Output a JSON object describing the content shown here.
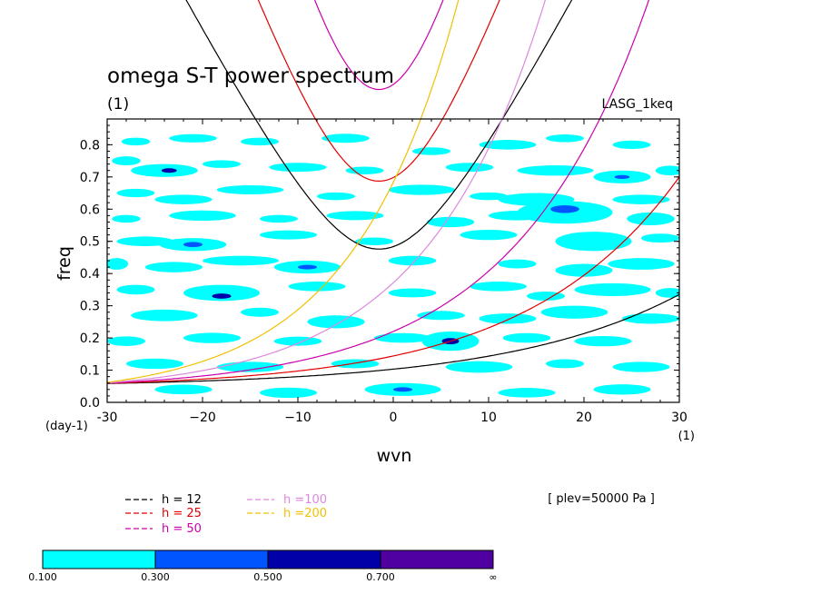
{
  "chart_data": {
    "type": "contour",
    "title": "omega S-T power spectrum",
    "subtitle": "(1)",
    "right_label": "LASG_1keq",
    "xlabel": "wvn",
    "ylabel": "freq",
    "x_unit": "(1)",
    "y_unit": "(day-1)",
    "xlim": [
      -30,
      30
    ],
    "ylim": [
      0,
      0.88
    ],
    "x_ticks": [
      -30,
      -20,
      -10,
      0,
      10,
      20,
      30
    ],
    "x_tick_labels": [
      "-30",
      "−20",
      "−10",
      "0",
      "10",
      "20",
      "30"
    ],
    "y_ticks": [
      0.0,
      0.1,
      0.2,
      0.3,
      0.4,
      0.5,
      0.6,
      0.7,
      0.8
    ],
    "y_tick_labels": [
      "0.0",
      "0.1",
      "0.2",
      "0.3",
      "0.4",
      "0.5",
      "0.6",
      "0.7",
      "0.8"
    ],
    "annotation": "[ plev=50000 Pa ]",
    "dispersion_curves": [
      {
        "name": "h = 12",
        "h": 12,
        "color": "#000000"
      },
      {
        "name": "h = 25",
        "h": 25,
        "color": "#e00000"
      },
      {
        "name": "h = 50",
        "h": 50,
        "color": "#cc00aa"
      },
      {
        "name": "h =100",
        "h": 100,
        "color": "#dd88dd"
      },
      {
        "name": "h =200",
        "h": 200,
        "color": "#f0c000"
      }
    ],
    "colorbar": {
      "colors": [
        "#00ffff",
        "#0055ff",
        "#0000a8",
        "#5000a0"
      ],
      "labels": [
        "0.100",
        "0.300",
        "0.500",
        "0.700",
        "∞"
      ]
    },
    "regions": [
      {
        "l": 1,
        "x": -27,
        "y": 0.81,
        "rx": 1.5,
        "ry": 0.012
      },
      {
        "l": 1,
        "x": -21,
        "y": 0.82,
        "rx": 2.5,
        "ry": 0.013
      },
      {
        "l": 1,
        "x": -14,
        "y": 0.81,
        "rx": 2,
        "ry": 0.012
      },
      {
        "l": 1,
        "x": -5,
        "y": 0.82,
        "rx": 2.5,
        "ry": 0.014
      },
      {
        "l": 1,
        "x": 4,
        "y": 0.78,
        "rx": 2,
        "ry": 0.012
      },
      {
        "l": 1,
        "x": 12,
        "y": 0.8,
        "rx": 3,
        "ry": 0.015
      },
      {
        "l": 1,
        "x": 18,
        "y": 0.82,
        "rx": 2,
        "ry": 0.012
      },
      {
        "l": 1,
        "x": 25,
        "y": 0.8,
        "rx": 2,
        "ry": 0.013
      },
      {
        "l": 1,
        "x": -28,
        "y": 0.75,
        "rx": 1.5,
        "ry": 0.014
      },
      {
        "l": 1,
        "x": -24,
        "y": 0.72,
        "rx": 3.5,
        "ry": 0.02
      },
      {
        "l": 3,
        "x": -23.5,
        "y": 0.72,
        "rx": 0.8,
        "ry": 0.007
      },
      {
        "l": 1,
        "x": -18,
        "y": 0.74,
        "rx": 2,
        "ry": 0.012
      },
      {
        "l": 1,
        "x": -10,
        "y": 0.73,
        "rx": 3,
        "ry": 0.014
      },
      {
        "l": 1,
        "x": -3,
        "y": 0.72,
        "rx": 2,
        "ry": 0.012
      },
      {
        "l": 1,
        "x": 8,
        "y": 0.73,
        "rx": 2.5,
        "ry": 0.014
      },
      {
        "l": 1,
        "x": 17,
        "y": 0.72,
        "rx": 4,
        "ry": 0.016
      },
      {
        "l": 1,
        "x": 24,
        "y": 0.7,
        "rx": 3,
        "ry": 0.02
      },
      {
        "l": 2,
        "x": 24,
        "y": 0.7,
        "rx": 0.8,
        "ry": 0.006
      },
      {
        "l": 1,
        "x": 29,
        "y": 0.72,
        "rx": 1.5,
        "ry": 0.015
      },
      {
        "l": 1,
        "x": -27,
        "y": 0.65,
        "rx": 2,
        "ry": 0.013
      },
      {
        "l": 1,
        "x": -22,
        "y": 0.63,
        "rx": 3,
        "ry": 0.015
      },
      {
        "l": 1,
        "x": -15,
        "y": 0.66,
        "rx": 3.5,
        "ry": 0.014
      },
      {
        "l": 1,
        "x": -6,
        "y": 0.64,
        "rx": 2,
        "ry": 0.012
      },
      {
        "l": 1,
        "x": 3,
        "y": 0.66,
        "rx": 3.5,
        "ry": 0.016
      },
      {
        "l": 1,
        "x": 10,
        "y": 0.64,
        "rx": 2,
        "ry": 0.012
      },
      {
        "l": 1,
        "x": 15,
        "y": 0.63,
        "rx": 4,
        "ry": 0.02
      },
      {
        "l": 1,
        "x": 26,
        "y": 0.63,
        "rx": 3,
        "ry": 0.015
      },
      {
        "l": 1,
        "x": -28,
        "y": 0.57,
        "rx": 1.5,
        "ry": 0.012
      },
      {
        "l": 1,
        "x": -20,
        "y": 0.58,
        "rx": 3.5,
        "ry": 0.016
      },
      {
        "l": 1,
        "x": -12,
        "y": 0.57,
        "rx": 2,
        "ry": 0.012
      },
      {
        "l": 1,
        "x": -4,
        "y": 0.58,
        "rx": 3,
        "ry": 0.014
      },
      {
        "l": 1,
        "x": 6,
        "y": 0.56,
        "rx": 2.5,
        "ry": 0.016
      },
      {
        "l": 1,
        "x": 13,
        "y": 0.58,
        "rx": 3,
        "ry": 0.015
      },
      {
        "l": 1,
        "x": 18,
        "y": 0.59,
        "rx": 5,
        "ry": 0.035
      },
      {
        "l": 2,
        "x": 18,
        "y": 0.6,
        "rx": 1.5,
        "ry": 0.012
      },
      {
        "l": 1,
        "x": 27,
        "y": 0.57,
        "rx": 2.5,
        "ry": 0.02
      },
      {
        "l": 1,
        "x": -26,
        "y": 0.5,
        "rx": 3,
        "ry": 0.015
      },
      {
        "l": 1,
        "x": -21,
        "y": 0.49,
        "rx": 3.5,
        "ry": 0.02
      },
      {
        "l": 2,
        "x": -21,
        "y": 0.49,
        "rx": 1,
        "ry": 0.008
      },
      {
        "l": 1,
        "x": -11,
        "y": 0.52,
        "rx": 3,
        "ry": 0.014
      },
      {
        "l": 1,
        "x": -2,
        "y": 0.5,
        "rx": 2,
        "ry": 0.012
      },
      {
        "l": 1,
        "x": 10,
        "y": 0.52,
        "rx": 3,
        "ry": 0.016
      },
      {
        "l": 1,
        "x": 21,
        "y": 0.5,
        "rx": 4,
        "ry": 0.03
      },
      {
        "l": 1,
        "x": 28,
        "y": 0.51,
        "rx": 2,
        "ry": 0.014
      },
      {
        "l": 1,
        "x": -29,
        "y": 0.43,
        "rx": 1.2,
        "ry": 0.018
      },
      {
        "l": 1,
        "x": -23,
        "y": 0.42,
        "rx": 3,
        "ry": 0.016
      },
      {
        "l": 1,
        "x": -16,
        "y": 0.44,
        "rx": 4,
        "ry": 0.015
      },
      {
        "l": 1,
        "x": -9,
        "y": 0.42,
        "rx": 3.5,
        "ry": 0.02
      },
      {
        "l": 2,
        "x": -9,
        "y": 0.42,
        "rx": 1,
        "ry": 0.007
      },
      {
        "l": 1,
        "x": 2,
        "y": 0.44,
        "rx": 2.5,
        "ry": 0.015
      },
      {
        "l": 1,
        "x": 13,
        "y": 0.43,
        "rx": 2,
        "ry": 0.014
      },
      {
        "l": 1,
        "x": 20,
        "y": 0.41,
        "rx": 3,
        "ry": 0.02
      },
      {
        "l": 1,
        "x": 26,
        "y": 0.43,
        "rx": 3.5,
        "ry": 0.018
      },
      {
        "l": 1,
        "x": -27,
        "y": 0.35,
        "rx": 2,
        "ry": 0.015
      },
      {
        "l": 1,
        "x": -18,
        "y": 0.34,
        "rx": 4,
        "ry": 0.025
      },
      {
        "l": 3,
        "x": -18,
        "y": 0.33,
        "rx": 1,
        "ry": 0.008
      },
      {
        "l": 1,
        "x": -8,
        "y": 0.36,
        "rx": 3,
        "ry": 0.015
      },
      {
        "l": 1,
        "x": 2,
        "y": 0.34,
        "rx": 2.5,
        "ry": 0.014
      },
      {
        "l": 1,
        "x": 11,
        "y": 0.36,
        "rx": 3,
        "ry": 0.015
      },
      {
        "l": 1,
        "x": 16,
        "y": 0.33,
        "rx": 2,
        "ry": 0.014
      },
      {
        "l": 1,
        "x": 23,
        "y": 0.35,
        "rx": 4,
        "ry": 0.02
      },
      {
        "l": 1,
        "x": 29,
        "y": 0.34,
        "rx": 1.5,
        "ry": 0.015
      },
      {
        "l": 1,
        "x": -24,
        "y": 0.27,
        "rx": 3.5,
        "ry": 0.018
      },
      {
        "l": 1,
        "x": -14,
        "y": 0.28,
        "rx": 2,
        "ry": 0.014
      },
      {
        "l": 1,
        "x": -6,
        "y": 0.25,
        "rx": 3,
        "ry": 0.02
      },
      {
        "l": 1,
        "x": 5,
        "y": 0.27,
        "rx": 2.5,
        "ry": 0.014
      },
      {
        "l": 1,
        "x": 12,
        "y": 0.26,
        "rx": 3,
        "ry": 0.016
      },
      {
        "l": 1,
        "x": 19,
        "y": 0.28,
        "rx": 3.5,
        "ry": 0.02
      },
      {
        "l": 1,
        "x": 27,
        "y": 0.26,
        "rx": 3,
        "ry": 0.016
      },
      {
        "l": 1,
        "x": -28,
        "y": 0.19,
        "rx": 2,
        "ry": 0.015
      },
      {
        "l": 1,
        "x": -19,
        "y": 0.2,
        "rx": 3,
        "ry": 0.016
      },
      {
        "l": 1,
        "x": -10,
        "y": 0.19,
        "rx": 2.5,
        "ry": 0.014
      },
      {
        "l": 1,
        "x": 1,
        "y": 0.2,
        "rx": 3,
        "ry": 0.015
      },
      {
        "l": 1,
        "x": 6,
        "y": 0.19,
        "rx": 3,
        "ry": 0.03
      },
      {
        "l": 3,
        "x": 6,
        "y": 0.19,
        "rx": 0.9,
        "ry": 0.01
      },
      {
        "l": 1,
        "x": 14,
        "y": 0.2,
        "rx": 2.5,
        "ry": 0.015
      },
      {
        "l": 1,
        "x": 22,
        "y": 0.19,
        "rx": 3,
        "ry": 0.016
      },
      {
        "l": 1,
        "x": -25,
        "y": 0.12,
        "rx": 3,
        "ry": 0.016
      },
      {
        "l": 1,
        "x": -15,
        "y": 0.11,
        "rx": 3.5,
        "ry": 0.016
      },
      {
        "l": 1,
        "x": -4,
        "y": 0.12,
        "rx": 2.5,
        "ry": 0.014
      },
      {
        "l": 1,
        "x": 9,
        "y": 0.11,
        "rx": 3.5,
        "ry": 0.018
      },
      {
        "l": 1,
        "x": 18,
        "y": 0.12,
        "rx": 2,
        "ry": 0.014
      },
      {
        "l": 1,
        "x": 26,
        "y": 0.11,
        "rx": 3,
        "ry": 0.016
      },
      {
        "l": 1,
        "x": -22,
        "y": 0.04,
        "rx": 3,
        "ry": 0.015
      },
      {
        "l": 1,
        "x": -11,
        "y": 0.03,
        "rx": 3,
        "ry": 0.016
      },
      {
        "l": 1,
        "x": 1,
        "y": 0.04,
        "rx": 4,
        "ry": 0.02
      },
      {
        "l": 2,
        "x": 1,
        "y": 0.04,
        "rx": 1,
        "ry": 0.007
      },
      {
        "l": 1,
        "x": 14,
        "y": 0.03,
        "rx": 3,
        "ry": 0.015
      },
      {
        "l": 1,
        "x": 24,
        "y": 0.04,
        "rx": 3,
        "ry": 0.016
      }
    ]
  }
}
